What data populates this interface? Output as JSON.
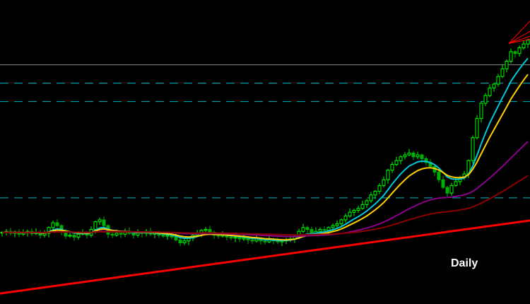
{
  "chart_data": {
    "type": "candlestick",
    "timeframe_label": "Daily",
    "ylim": [
      63,
      222
    ],
    "grid": false,
    "background": "#000000",
    "colors": {
      "bull_candle": "#00ff00",
      "bear_candle": "#00b000",
      "ma_fast": "#00c8d8",
      "ma_mid": "#ffd000",
      "ma_slow": "#8a008a",
      "ma_long": "#8b0000",
      "trendline": "#ff0000",
      "level_solid": "#8a8a8a",
      "level_dashed": "#00b8c8"
    },
    "moving_averages": [
      {
        "color_key": "ma_fast",
        "period": 8
      },
      {
        "color_key": "ma_mid",
        "period": 13
      },
      {
        "color_key": "ma_slow",
        "period": 50
      },
      {
        "color_key": "ma_long",
        "period": 100
      }
    ],
    "closes": [
      100.5,
      101,
      100,
      100.8,
      99.5,
      100.2,
      101,
      99.8,
      100.5,
      99,
      100,
      103,
      105.5,
      104,
      101,
      98.5,
      99,
      98,
      99.5,
      100,
      99,
      102,
      106,
      107,
      104,
      99.5,
      99,
      100,
      99.5,
      101,
      100,
      99,
      100.5,
      100,
      101,
      99.5,
      100,
      99,
      98.5,
      99,
      98,
      96.5,
      95,
      96,
      97.5,
      99,
      100,
      101.5,
      102,
      100.5,
      99,
      98.5,
      99,
      98,
      97.5,
      98,
      97,
      97.5,
      96.5,
      96,
      97,
      96,
      95.5,
      96.5,
      96,
      95.5,
      96,
      96.5,
      97,
      98.5,
      101,
      103,
      102,
      100,
      101,
      102,
      101.5,
      103,
      104,
      105,
      107,
      109,
      111,
      112,
      113,
      115,
      117,
      120,
      122,
      125,
      128,
      133,
      136,
      138,
      140,
      141,
      142,
      140,
      141,
      139,
      137,
      135,
      132,
      128,
      124,
      121,
      125,
      127,
      129,
      131,
      138,
      150,
      160,
      168,
      172,
      176,
      178,
      182,
      186,
      190,
      195,
      194,
      197,
      199,
      201
    ],
    "horizontal_levels": [
      {
        "price": 188.1,
        "style": "solid",
        "color_key": "level_solid"
      },
      {
        "price": 178.5,
        "style": "dashed",
        "color_key": "level_dashed"
      },
      {
        "price": 168.9,
        "style": "dashed",
        "color_key": "level_dashed"
      },
      {
        "price": 118.5,
        "style": "dashed",
        "color_key": "level_dashed"
      }
    ],
    "trendlines": [
      {
        "from": [
          -0.5,
          68.5
        ],
        "to": [
          124.5,
          106.7
        ],
        "width": 3,
        "color_key": "trendline"
      },
      {
        "from": [
          119.5,
          199.3
        ],
        "to": [
          124.5,
          211
        ],
        "width": 1,
        "color_key": "trendline"
      },
      {
        "from": [
          119.5,
          199.3
        ],
        "to": [
          124.5,
          205.6
        ],
        "width": 1,
        "color_key": "trendline"
      },
      {
        "from": [
          119.5,
          199.3
        ],
        "to": [
          124.5,
          203
        ],
        "width": 1,
        "color_key": "trendline"
      },
      {
        "from": [
          119.5,
          199.3
        ],
        "to": [
          124.5,
          201.5
        ],
        "width": 1,
        "color_key": "trendline"
      }
    ]
  }
}
